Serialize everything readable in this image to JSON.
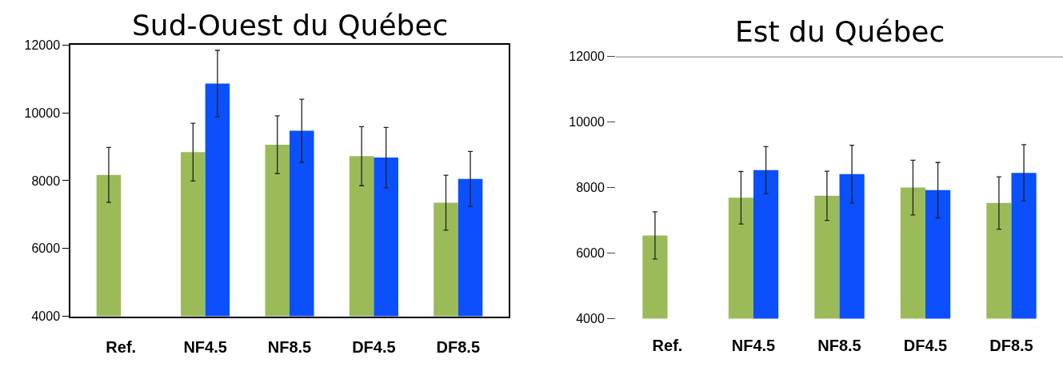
{
  "chart_data": [
    {
      "type": "bar",
      "title": "Sud-Ouest du Québec",
      "categories": [
        "Ref.",
        "NF4.5",
        "NF8.5",
        "DF4.5",
        "DF8.5"
      ],
      "ylim": [
        4000,
        12000
      ],
      "yticks": [
        4000,
        6000,
        8000,
        10000,
        12000
      ],
      "series": [
        {
          "color": "#9bbb59",
          "values": [
            8170,
            8840,
            9060,
            8720,
            7350
          ],
          "errors": [
            810,
            850,
            850,
            870,
            810
          ]
        },
        {
          "color": "#0b4ffd",
          "values": [
            null,
            10860,
            9470,
            8680,
            8050
          ],
          "errors": [
            null,
            980,
            930,
            890,
            810
          ]
        }
      ]
    },
    {
      "type": "bar",
      "title": "Est du Québec",
      "categories": [
        "Ref.",
        "NF4.5",
        "NF8.5",
        "DF4.5",
        "DF8.5"
      ],
      "ylim": [
        4000,
        12000
      ],
      "yticks": [
        4000,
        6000,
        8000,
        10000,
        12000
      ],
      "ref_lines": [
        {
          "axis": "y",
          "value": 12000,
          "color": "#555555"
        }
      ],
      "series": [
        {
          "color": "#9bbb59",
          "values": [
            6540,
            7690,
            7750,
            8000,
            7530
          ],
          "errors": [
            720,
            800,
            750,
            835,
            800
          ]
        },
        {
          "color": "#0b4ffd",
          "values": [
            null,
            8530,
            8410,
            7920,
            8450
          ],
          "errors": [
            null,
            720,
            880,
            845,
            860
          ]
        }
      ]
    }
  ]
}
